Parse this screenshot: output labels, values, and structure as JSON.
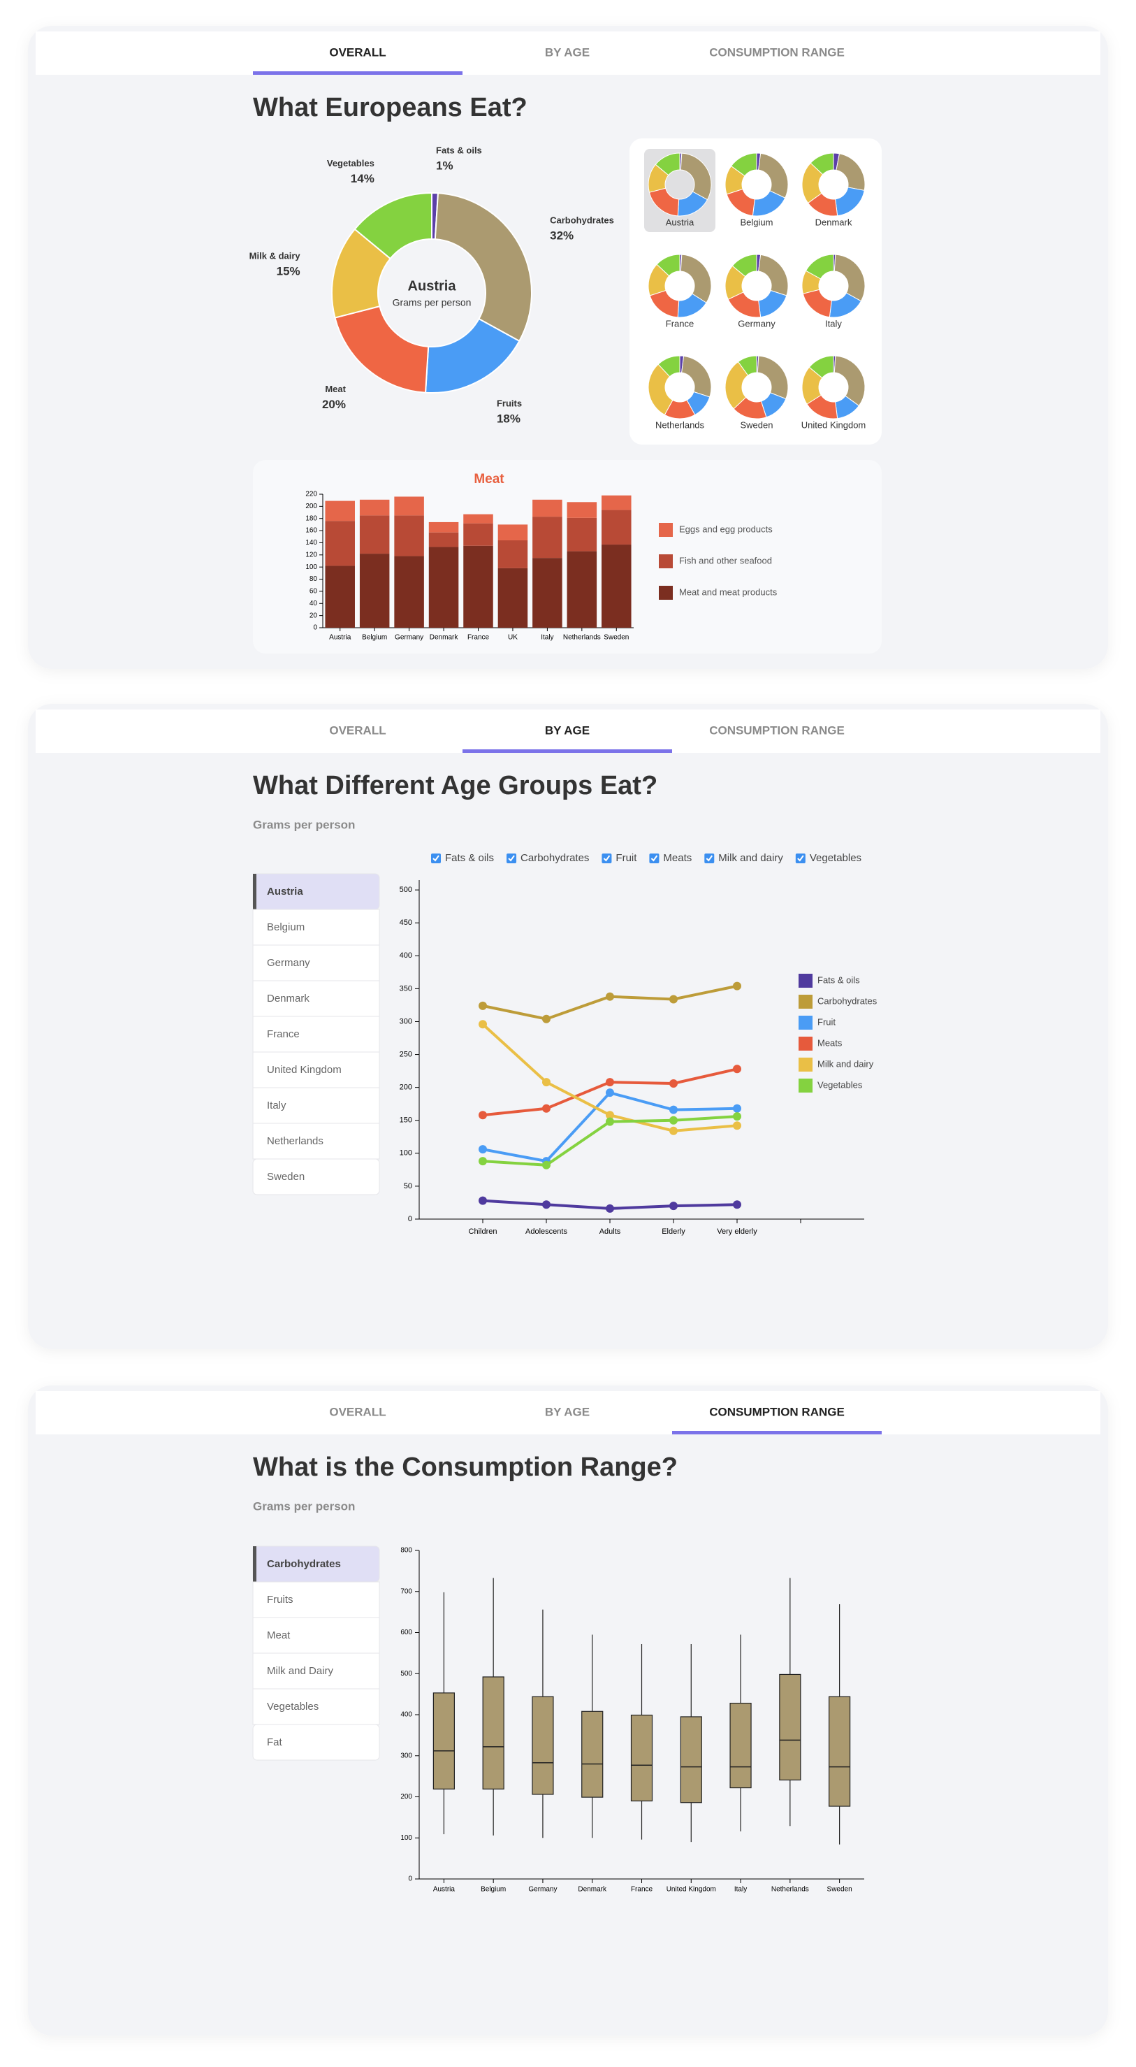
{
  "tabs": [
    "OVERALL",
    "BY AGE",
    "CONSUMPTION RANGE"
  ],
  "sections": [
    {
      "title": "What Europeans Eat?"
    },
    {
      "title": "What Different Age Groups Eat?",
      "subtitle": "Grams per person"
    },
    {
      "title": "What is the Consumption Range?",
      "subtitle": "Grams per person"
    }
  ],
  "country_list": [
    "Austria",
    "Belgium",
    "Germany",
    "Denmark",
    "France",
    "United Kingdom",
    "Italy",
    "Netherlands",
    "Sweden"
  ],
  "food_list": [
    "Carbohydrates",
    "Fruits",
    "Meat",
    "Milk and Dairy",
    "Vegetables",
    "Fat"
  ],
  "chart_data": [
    {
      "type": "pie",
      "donut": true,
      "title": "Austria",
      "subtitle": "Grams per person",
      "categories": [
        "Fats & oils",
        "Carbohydrates",
        "Fruits",
        "Meat",
        "Milk & dairy",
        "Vegetables"
      ],
      "values": [
        1,
        32,
        18,
        20,
        15,
        14
      ],
      "value_labels": [
        "1%",
        "32%",
        "18%",
        "20%",
        "15%",
        "14%"
      ],
      "colors": [
        "#5b3fa8",
        "#ab9a70",
        "#4a9cf5",
        "#ef6644",
        "#eabf46",
        "#84d240"
      ]
    },
    {
      "type": "pie",
      "donut": true,
      "series": [
        {
          "name": "Austria",
          "values": [
            1,
            32,
            18,
            20,
            15,
            14
          ]
        },
        {
          "name": "Belgium",
          "values": [
            2,
            30,
            20,
            18,
            15,
            15
          ]
        },
        {
          "name": "Denmark",
          "values": [
            3,
            25,
            20,
            17,
            22,
            13
          ]
        },
        {
          "name": "France",
          "values": [
            1,
            33,
            17,
            19,
            17,
            13
          ]
        },
        {
          "name": "Germany",
          "values": [
            2,
            28,
            18,
            20,
            18,
            14
          ]
        },
        {
          "name": "Italy",
          "values": [
            1,
            32,
            19,
            19,
            12,
            17
          ]
        },
        {
          "name": "Netherlands",
          "values": [
            2,
            28,
            12,
            16,
            30,
            12
          ]
        },
        {
          "name": "Sweden",
          "values": [
            1,
            30,
            14,
            18,
            27,
            10
          ]
        },
        {
          "name": "United Kingdom",
          "values": [
            1,
            34,
            13,
            18,
            20,
            14
          ]
        }
      ]
    },
    {
      "type": "bar",
      "stacked": true,
      "title": "Meat",
      "title_color": "#e8603f",
      "categories": [
        "Austria",
        "Belgium",
        "Germany",
        "Denmark",
        "France",
        "UK",
        "Italy",
        "Netherlands",
        "Sweden"
      ],
      "series": [
        {
          "name": "Meat and meat products",
          "color": "#7b2e20",
          "values": [
            102,
            122,
            118,
            133,
            135,
            98,
            115,
            126,
            137
          ]
        },
        {
          "name": "Fish and other seafood",
          "color": "#b84a36",
          "values": [
            74,
            63,
            67,
            24,
            37,
            46,
            68,
            55,
            57
          ]
        },
        {
          "name": "Eggs and egg products",
          "color": "#e5664a",
          "values": [
            33,
            26,
            31,
            17,
            15,
            26,
            28,
            26,
            24
          ]
        }
      ],
      "ylim": [
        0,
        220
      ],
      "yticks": [
        0,
        20,
        40,
        60,
        80,
        100,
        120,
        140,
        160,
        180,
        200,
        220
      ]
    },
    {
      "type": "line",
      "categories": [
        "Children",
        "Adolescents",
        "Adults",
        "Elderly",
        "Very elderly",
        null
      ],
      "series": [
        {
          "name": "Fats & oils",
          "color": "#4f3a9e",
          "values": [
            28,
            22,
            16,
            20,
            22,
            null
          ]
        },
        {
          "name": "Carbohydrates",
          "color": "#bd9c39",
          "values": [
            324,
            304,
            338,
            334,
            354,
            null
          ]
        },
        {
          "name": "Fruit",
          "color": "#4a9cf5",
          "values": [
            106,
            88,
            192,
            166,
            168,
            null
          ]
        },
        {
          "name": "Meats",
          "color": "#e65a3c",
          "values": [
            158,
            168,
            208,
            206,
            228,
            null
          ]
        },
        {
          "name": "Milk and dairy",
          "color": "#eabf46",
          "values": [
            296,
            208,
            158,
            134,
            142,
            null
          ]
        },
        {
          "name": "Vegetables",
          "color": "#84d240",
          "values": [
            88,
            82,
            148,
            150,
            156,
            null
          ]
        }
      ],
      "ylim": [
        0,
        515
      ],
      "yticks": [
        0,
        50,
        100,
        150,
        200,
        250,
        300,
        350,
        400,
        450,
        500
      ]
    },
    {
      "type": "box",
      "color": "#ab9a70",
      "categories": [
        "Austria",
        "Belgium",
        "Germany",
        "Denmark",
        "France",
        "United Kingdom",
        "Italy",
        "Netherlands",
        "Sweden"
      ],
      "min": [
        109,
        106,
        100,
        100,
        96,
        90,
        116,
        129,
        84
      ],
      "q1": [
        219,
        219,
        206,
        199,
        190,
        186,
        222,
        241,
        177
      ],
      "median": [
        312,
        322,
        283,
        280,
        277,
        273,
        273,
        338,
        273
      ],
      "q3": [
        453,
        492,
        444,
        408,
        399,
        395,
        428,
        498,
        444
      ],
      "max": [
        698,
        733,
        656,
        595,
        572,
        572,
        595,
        733,
        669
      ],
      "ylim": [
        0,
        800
      ],
      "yticks": [
        0,
        100,
        200,
        300,
        400,
        500,
        600,
        700,
        800
      ]
    }
  ]
}
